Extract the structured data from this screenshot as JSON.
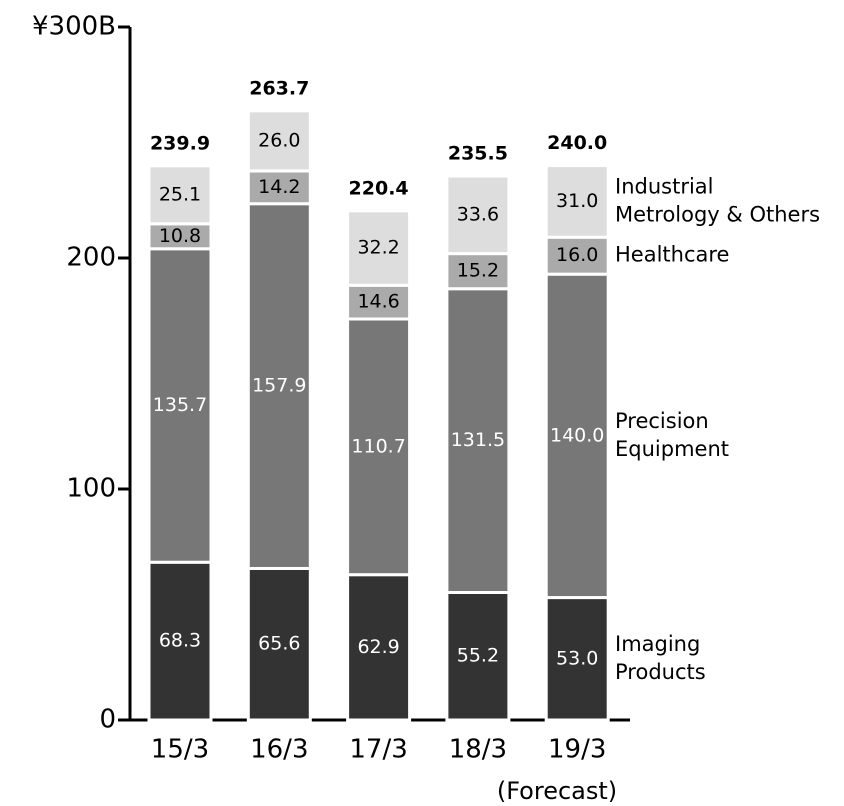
{
  "chart_data": {
    "type": "stacked_bar",
    "categories": [
      "15/3",
      "16/3",
      "17/3",
      "18/3",
      "19/3"
    ],
    "annotation": "(Forecast)",
    "series": [
      {
        "name": "Imaging Products",
        "color": "#333333",
        "values": [
          68.3,
          65.6,
          62.9,
          55.2,
          53
        ],
        "value_labels": [
          "68.3",
          "65.6",
          "62.9",
          "55.2",
          "53.0"
        ]
      },
      {
        "name": "Precision Equipment",
        "color": "#777777",
        "values": [
          135.7,
          157.9,
          110.7,
          131.5,
          140
        ],
        "value_labels": [
          "135.7",
          "157.9",
          "110.7",
          "131.5",
          "140.0"
        ]
      },
      {
        "name": "Healthcare",
        "color": "#aaaaaa",
        "values": [
          10.8,
          14.2,
          14.6,
          15.2,
          16
        ],
        "value_labels": [
          "10.8",
          "14.2",
          "14.6",
          "15.2",
          "16.0"
        ]
      },
      {
        "name": "Industrial Metrology & Others",
        "color": "#dddddd",
        "values": [
          25.1,
          26,
          32.2,
          33.6,
          31
        ],
        "value_labels": [
          "25.1",
          "26.0",
          "32.2",
          "33.6",
          "31.0"
        ]
      }
    ],
    "totals": [
      239.9,
      263.7,
      220.4,
      235.5,
      240
    ],
    "total_labels": [
      "239.9",
      "263.7",
      "220.4",
      "235.5",
      "240.0"
    ],
    "ylim": [
      0,
      300
    ],
    "yticks": [
      0,
      100,
      200,
      {
        "value": 300,
        "label": "¥300B"
      }
    ]
  }
}
